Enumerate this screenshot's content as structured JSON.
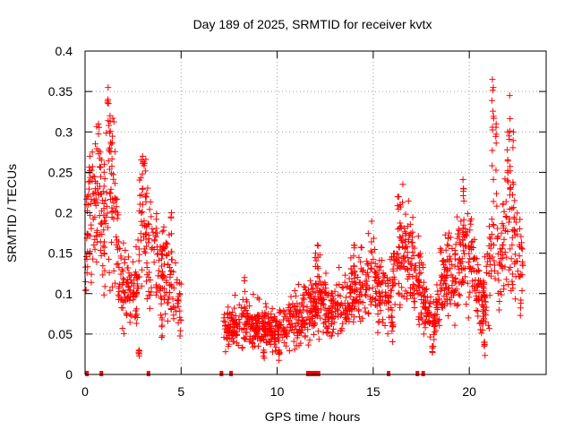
{
  "chart_data": {
    "type": "scatter",
    "title": "Day 189 of 2025, SRMTID for receiver kvtx",
    "xlabel": "GPS time / hours",
    "ylabel": "SRMTID / TECUs",
    "xlim": [
      0,
      24
    ],
    "ylim": [
      0,
      0.4
    ],
    "grid": true,
    "marker": "+",
    "color": "#ff0000",
    "x_ticks": [
      0,
      5,
      10,
      15,
      20
    ],
    "x_tick_labels": [
      "0",
      "5",
      "10",
      "15",
      "20"
    ],
    "y_ticks": [
      0,
      0.05,
      0.1,
      0.15,
      0.2,
      0.25,
      0.3,
      0.35,
      0.4
    ],
    "y_tick_labels": [
      "0",
      "0.05",
      "0.1",
      "0.15",
      "0.2",
      "0.25",
      "0.3",
      "0.35",
      "0.4"
    ],
    "series": [
      {
        "name": "SRMTID",
        "trend": {
          "x": [
            0.0,
            0.2,
            0.4,
            0.7,
            1.0,
            1.2,
            1.5,
            1.8,
            2.1,
            2.4,
            2.7,
            3.0,
            3.3,
            3.6,
            4.0,
            4.3,
            4.7,
            5.0
          ],
          "y": [
            0.11,
            0.21,
            0.19,
            0.23,
            0.17,
            0.24,
            0.21,
            0.13,
            0.1,
            0.11,
            0.1,
            0.22,
            0.16,
            0.15,
            0.14,
            0.12,
            0.1,
            0.08
          ]
        },
        "spikes": [
          {
            "x": 0.25,
            "y": 0.27
          },
          {
            "x": 0.7,
            "y": 0.31
          },
          {
            "x": 1.2,
            "y": 0.355
          },
          {
            "x": 1.3,
            "y": 0.32
          },
          {
            "x": 1.0,
            "y": 0.26
          },
          {
            "x": 2.8,
            "y": 0.03
          },
          {
            "x": 3.0,
            "y": 0.27
          },
          {
            "x": 4.0,
            "y": 0.07
          },
          {
            "x": 4.5,
            "y": 0.2
          }
        ]
      },
      {
        "name": "SRMTID",
        "trend": {
          "x": [
            7.2,
            7.7,
            8.2,
            8.7,
            9.2,
            9.7,
            10.2,
            10.7,
            11.2,
            11.7,
            12.2,
            12.7,
            13.2,
            13.7,
            14.0,
            14.5,
            15.0,
            15.5,
            15.8,
            16.2,
            16.6,
            17.0,
            17.3,
            17.6
          ],
          "y": [
            0.055,
            0.06,
            0.065,
            0.06,
            0.06,
            0.055,
            0.055,
            0.065,
            0.075,
            0.08,
            0.09,
            0.08,
            0.085,
            0.09,
            0.1,
            0.11,
            0.12,
            0.1,
            0.09,
            0.13,
            0.17,
            0.14,
            0.12,
            0.11
          ]
        },
        "spikes": [
          {
            "x": 8.3,
            "y": 0.12
          },
          {
            "x": 9.3,
            "y": 0.03
          },
          {
            "x": 10.1,
            "y": 0.03
          },
          {
            "x": 12.0,
            "y": 0.15
          },
          {
            "x": 12.1,
            "y": 0.16
          },
          {
            "x": 14.0,
            "y": 0.16
          },
          {
            "x": 16.0,
            "y": 0.06
          },
          {
            "x": 16.3,
            "y": 0.22
          },
          {
            "x": 16.4,
            "y": 0.21
          }
        ]
      },
      {
        "name": "SRMTID",
        "trend": {
          "x": [
            17.6,
            17.9,
            18.2,
            18.5,
            18.8,
            19.2,
            19.5,
            19.8,
            20.1,
            20.4,
            20.7,
            21.0,
            21.3,
            21.6,
            21.9,
            22.2,
            22.5,
            22.8
          ],
          "y": [
            0.09,
            0.07,
            0.06,
            0.11,
            0.13,
            0.11,
            0.15,
            0.17,
            0.14,
            0.1,
            0.08,
            0.13,
            0.17,
            0.14,
            0.2,
            0.18,
            0.15,
            0.13
          ]
        },
        "spikes": [
          {
            "x": 18.1,
            "y": 0.035
          },
          {
            "x": 19.7,
            "y": 0.23
          },
          {
            "x": 20.8,
            "y": 0.04
          },
          {
            "x": 21.2,
            "y": 0.365
          },
          {
            "x": 21.25,
            "y": 0.355
          },
          {
            "x": 21.4,
            "y": 0.31
          },
          {
            "x": 22.0,
            "y": 0.3
          },
          {
            "x": 22.1,
            "y": 0.345
          },
          {
            "x": 22.3,
            "y": 0.3
          }
        ]
      }
    ],
    "zero_markers_x": [
      0.1,
      0.85,
      3.3,
      7.1,
      7.6,
      11.6,
      11.75,
      11.85,
      11.95,
      12.05,
      12.15,
      15.8,
      17.3,
      17.6
    ]
  }
}
